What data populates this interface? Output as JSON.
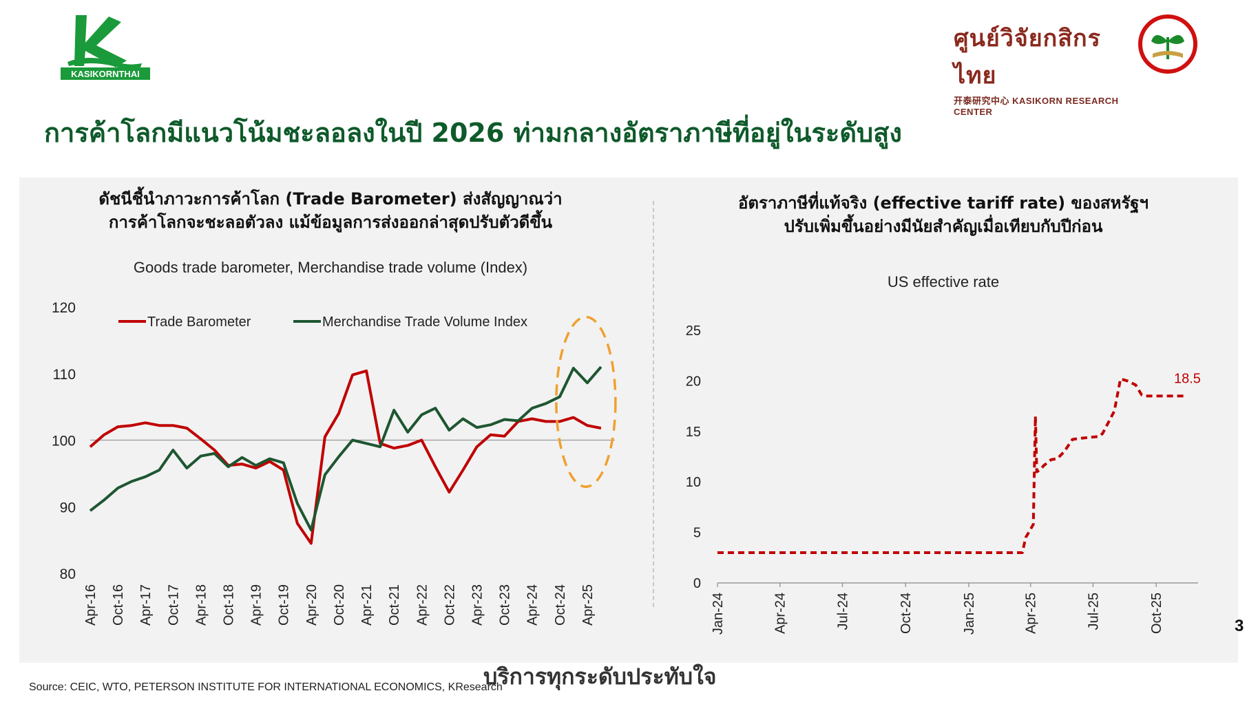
{
  "brand": {
    "left_logo_text": "KASIKORNTHAI",
    "right_logo_th": "ศูนย์วิจัยกสิกรไทย",
    "right_logo_en": "开泰研究中心 KASIKORN RESEARCH CENTER"
  },
  "title": "การค้าโลกมีแนวโน้มชะลอลงในปี 2026 ท่ามกลางอัตราภาษีที่อยู่ในระดับสูง",
  "left_panel": {
    "heading_line1": "ดัชนีชี้นำภาวะการค้าโลก (Trade Barometer) ส่งสัญญาณว่า",
    "heading_line2": "การค้าโลกจะชะลอตัวลง แม้ข้อมูลการส่งออกล่าสุดปรับตัวดีขึ้น"
  },
  "right_panel": {
    "heading_line1": "อัตราภาษีที่แท้จริง (effective tariff rate) ของสหรัฐฯ",
    "heading_line2": "ปรับเพิ่มขึ้นอย่างมีนัยสำคัญเมื่อเทียบกับปีก่อน"
  },
  "footer": {
    "source": "Source: CEIC, WTO, PETERSON INSTITUTE FOR INTERNATIONAL ECONOMICS, KResearch",
    "slogan": "บริการทุกระดับประทับใจ",
    "page_number": "3"
  },
  "colors": {
    "green": "#0e5a2a",
    "red": "#c00000",
    "dark_green": "#1e5631",
    "orange": "#f0a030",
    "logo_green": "#1a9a3a"
  },
  "chart_data": [
    {
      "type": "line",
      "title": "Goods trade barometer, Merchandise trade volume (Index)",
      "categories": [
        "Apr-16",
        "Jul-16",
        "Oct-16",
        "Jan-17",
        "Apr-17",
        "Jul-17",
        "Oct-17",
        "Jan-18",
        "Apr-18",
        "Jul-18",
        "Oct-18",
        "Jan-19",
        "Apr-19",
        "Jul-19",
        "Oct-19",
        "Jan-20",
        "Apr-20",
        "Jul-20",
        "Oct-20",
        "Jan-21",
        "Apr-21",
        "Jul-21",
        "Oct-21",
        "Jan-22",
        "Apr-22",
        "Jul-22",
        "Oct-22",
        "Jan-23",
        "Apr-23",
        "Jul-23",
        "Oct-23",
        "Jan-24",
        "Apr-24",
        "Jul-24",
        "Oct-24",
        "Jan-25",
        "Apr-25",
        "Jul-25",
        "Oct-25"
      ],
      "tick_labels": [
        "Apr-16",
        "Oct-16",
        "Apr-17",
        "Oct-17",
        "Apr-18",
        "Oct-18",
        "Apr-19",
        "Oct-19",
        "Apr-20",
        "Oct-20",
        "Apr-21",
        "Oct-21",
        "Apr-22",
        "Oct-22",
        "Apr-23",
        "Oct-23",
        "Apr-24",
        "Oct-24",
        "Apr-25"
      ],
      "series": [
        {
          "name": "Trade Barometer",
          "color": "#c00000",
          "values": [
            99.0,
            100.8,
            102.0,
            102.2,
            102.6,
            102.2,
            102.2,
            101.8,
            100.2,
            98.5,
            96.2,
            96.4,
            95.8,
            96.8,
            95.5,
            87.5,
            84.5,
            100.5,
            104.0,
            109.8,
            110.4,
            99.5,
            98.8,
            99.2,
            100.0,
            96.0,
            92.2,
            95.5,
            99.0,
            100.8,
            100.6,
            102.8,
            103.2,
            102.8,
            102.8,
            103.4,
            102.2,
            101.8,
            null
          ]
        },
        {
          "name": "Merchandise Trade Volume Index",
          "color": "#1e5631",
          "values": [
            89.4,
            91.0,
            92.8,
            93.8,
            94.5,
            95.5,
            98.5,
            95.8,
            97.6,
            98.0,
            96.0,
            97.4,
            96.2,
            97.2,
            96.6,
            90.5,
            86.5,
            94.8,
            97.5,
            100.0,
            99.5,
            99.0,
            104.5,
            101.2,
            103.8,
            104.8,
            101.5,
            103.2,
            101.9,
            102.3,
            103.1,
            102.9,
            104.8,
            105.5,
            106.5,
            110.8,
            108.6,
            111.0,
            null
          ]
        }
      ],
      "reference_line": 100,
      "ylim": [
        80,
        120
      ],
      "yticks": [
        80,
        90,
        100,
        110,
        120
      ],
      "legend": "top",
      "highlight": "dashed orange ellipse around latest data (Oct-24 to latest)"
    },
    {
      "type": "line",
      "title": "US effective rate",
      "x_dates": [
        "2024-01-01",
        "2025-03-20",
        "2025-03-25",
        "2025-03-31",
        "2025-04-05",
        "2025-04-08",
        "2025-04-10",
        "2025-04-15",
        "2025-04-20",
        "2025-05-01",
        "2025-05-10",
        "2025-05-20",
        "2025-06-01",
        "2025-06-10",
        "2025-07-10",
        "2025-07-15",
        "2025-08-01",
        "2025-08-10",
        "2025-08-20",
        "2025-09-01",
        "2025-09-10",
        "2025-09-15",
        "2025-10-01",
        "2025-11-15"
      ],
      "values": [
        3.0,
        3.0,
        4.5,
        5.2,
        5.8,
        16.5,
        11.0,
        11.2,
        11.6,
        12.2,
        12.3,
        13.0,
        14.2,
        14.3,
        14.5,
        14.8,
        17.0,
        20.2,
        20.0,
        19.6,
        18.6,
        18.5,
        18.5,
        18.5
      ],
      "tick_labels": [
        "Jan-24",
        "Apr-24",
        "Jul-24",
        "Oct-24",
        "Jan-25",
        "Apr-25",
        "Jul-25",
        "Oct-25"
      ],
      "ylim": [
        0,
        25
      ],
      "yticks": [
        0,
        5,
        10,
        15,
        20,
        25
      ],
      "data_label": "18.5",
      "line_style": "dashed",
      "color": "#c00000"
    }
  ]
}
